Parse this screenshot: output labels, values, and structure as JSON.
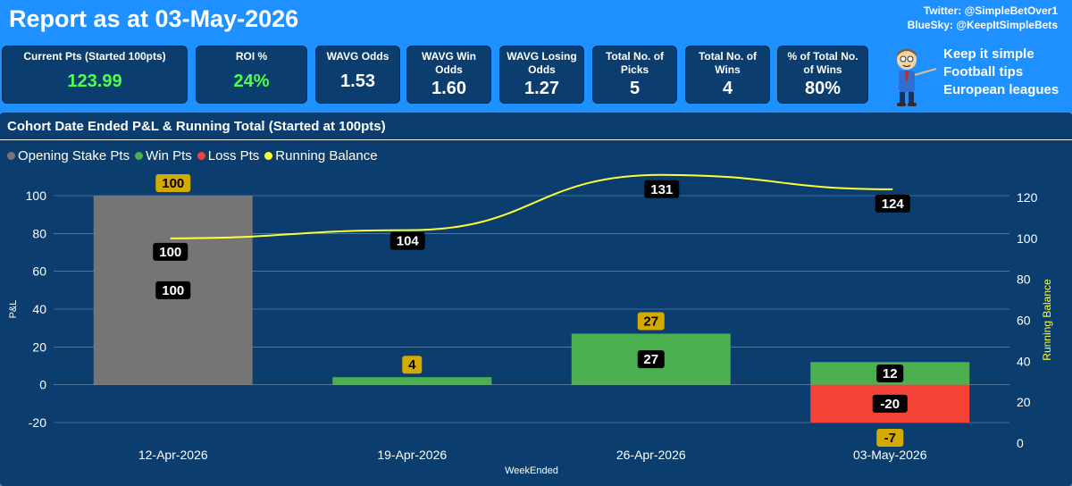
{
  "header": {
    "title": "Report as at 03-May-2026",
    "twitter": "Twitter: @SimpleBetOver1",
    "bluesky": "BlueSky: @KeepItSimpleBets"
  },
  "kpis": [
    {
      "label": "Current Pts (Started 100pts)",
      "value": "123.99",
      "value_color": "#4cff4c"
    },
    {
      "label": "ROI %",
      "value": "24%",
      "value_color": "#4cff4c"
    },
    {
      "label": "WAVG Odds",
      "value": "1.53",
      "value_color": "#ffffff"
    },
    {
      "label": "WAVG Win Odds",
      "value": "1.60",
      "value_color": "#ffffff"
    },
    {
      "label": "WAVG Losing Odds",
      "value": "1.27",
      "value_color": "#ffffff"
    },
    {
      "label": "Total No. of Picks",
      "value": "5",
      "value_color": "#ffffff"
    },
    {
      "label": "Total No. of Wins",
      "value": "4",
      "value_color": "#ffffff"
    },
    {
      "label": "% of Total No. of Wins",
      "value": "80%",
      "value_color": "#ffffff"
    }
  ],
  "promo": {
    "line1": "Keep it simple",
    "line2": "Football tips",
    "line3": "European leagues",
    "icon": "cartoon-presenter-icon"
  },
  "chart_panel": {
    "title": "Cohort Date Ended P&L & Running Total (Started at 100pts)"
  },
  "chart_data": {
    "type": "bar",
    "categories": [
      "12-Apr-2026",
      "19-Apr-2026",
      "26-Apr-2026",
      "03-May-2026"
    ],
    "series": [
      {
        "name": "Opening Stake Pts",
        "values": [
          100,
          0,
          0,
          0
        ],
        "color": "#757575"
      },
      {
        "name": "Win Pts",
        "values": [
          0,
          4,
          27,
          12
        ],
        "color": "#4caf50"
      },
      {
        "name": "Loss Pts",
        "values": [
          0,
          0,
          0,
          -20
        ],
        "color": "#f44336"
      },
      {
        "name": "Running Balance",
        "type": "line",
        "axis": "right",
        "values": [
          100,
          104,
          131,
          124
        ],
        "color": "#ffff33"
      }
    ],
    "total_labels": [
      "100",
      "4",
      "27",
      "-7"
    ],
    "segment_labels": [
      {
        "category": 0,
        "value": 100,
        "text": "100"
      },
      {
        "category": 2,
        "value": 27,
        "text": "27"
      },
      {
        "category": 3,
        "value": 12,
        "text": "12"
      },
      {
        "category": 3,
        "value": -20,
        "text": "-20"
      }
    ],
    "line_labels": [
      "100",
      "104",
      "131",
      "124"
    ],
    "xlabel": "WeekEnded",
    "ylabel": "P&L",
    "y2label": "Running Balance",
    "ylim": [
      -20,
      100
    ],
    "yticks": [
      "100",
      "80",
      "60",
      "40",
      "20",
      "0",
      "-20"
    ],
    "y2lim": [
      0,
      120
    ],
    "y2ticks": [
      "120",
      "100",
      "80",
      "60",
      "40",
      "20",
      "0"
    ],
    "grid": true,
    "legend": "top-left"
  }
}
